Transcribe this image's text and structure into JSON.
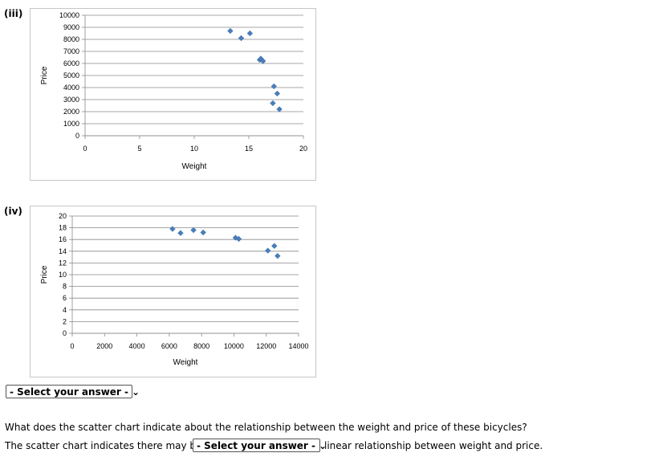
{
  "parts": [
    {
      "label": "(iii)"
    },
    {
      "label": "(iv)"
    }
  ],
  "marker_color": "#4a7ebb",
  "chart_data": [
    {
      "type": "scatter",
      "xlabel": "Weight",
      "ylabel": "Price",
      "xlim": [
        0,
        20
      ],
      "ylim": [
        0,
        10000
      ],
      "xticks": [
        "0",
        "5",
        "10",
        "15",
        "20"
      ],
      "yticks": [
        "0",
        "1000",
        "2000",
        "3000",
        "4000",
        "5000",
        "6000",
        "7000",
        "8000",
        "9000",
        "10000"
      ],
      "grid": "horizontal",
      "points": [
        {
          "x": 13.3,
          "y": 8700
        },
        {
          "x": 14.3,
          "y": 8100
        },
        {
          "x": 15.1,
          "y": 8500
        },
        {
          "x": 16.0,
          "y": 6300
        },
        {
          "x": 16.1,
          "y": 6400
        },
        {
          "x": 16.3,
          "y": 6200
        },
        {
          "x": 17.3,
          "y": 4100
        },
        {
          "x": 17.6,
          "y": 3500
        },
        {
          "x": 17.2,
          "y": 2700
        },
        {
          "x": 17.8,
          "y": 2200
        }
      ]
    },
    {
      "type": "scatter",
      "xlabel": "Weight",
      "ylabel": "Price",
      "xlim": [
        0,
        14000
      ],
      "ylim": [
        0,
        20
      ],
      "xticks": [
        "0",
        "2000",
        "4000",
        "6000",
        "8000",
        "10000",
        "12000",
        "14000"
      ],
      "yticks": [
        "0",
        "2",
        "4",
        "6",
        "8",
        "10",
        "12",
        "14",
        "16",
        "18",
        "20"
      ],
      "grid": "horizontal",
      "points": [
        {
          "x": 6200,
          "y": 17.8
        },
        {
          "x": 6700,
          "y": 17.1
        },
        {
          "x": 7500,
          "y": 17.6
        },
        {
          "x": 8100,
          "y": 17.2
        },
        {
          "x": 10100,
          "y": 16.3
        },
        {
          "x": 10300,
          "y": 16.1
        },
        {
          "x": 12100,
          "y": 14.1
        },
        {
          "x": 12500,
          "y": 14.9
        },
        {
          "x": 12700,
          "y": 13.2
        }
      ]
    }
  ],
  "answer_select": {
    "value": "- Select your answer -"
  },
  "question": "What does the scatter chart indicate about the relationship between the weight and price of these bicycles?",
  "sentence": {
    "before": "The scatter chart indicates there may be a",
    "select_value": "- Select your answer -",
    "after": "linear relationship between weight and price."
  },
  "chevron_icon": "chevron-down-icon"
}
